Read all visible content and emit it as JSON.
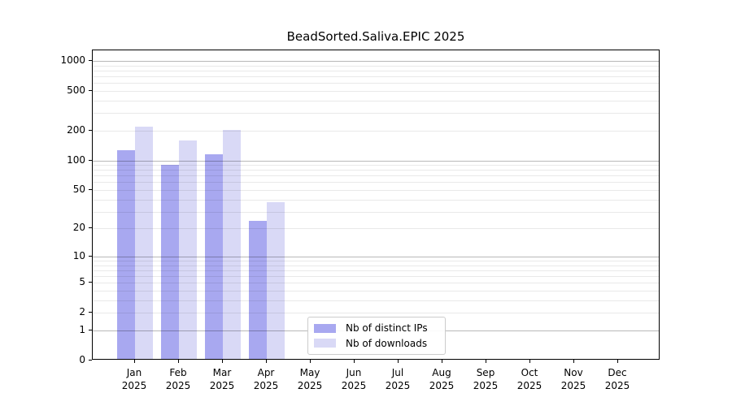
{
  "chart_data": {
    "type": "bar",
    "title": "BeadSorted.Saliva.EPIC 2025",
    "year_label": "2025",
    "categories": [
      "Jan",
      "Feb",
      "Mar",
      "Apr",
      "May",
      "Jun",
      "Jul",
      "Aug",
      "Sep",
      "Oct",
      "Nov",
      "Dec"
    ],
    "series": [
      {
        "name": "Nb of distinct IPs",
        "color": "#a8a8f0",
        "values": [
          123,
          87,
          111,
          23,
          0,
          0,
          0,
          0,
          0,
          0,
          0,
          0
        ]
      },
      {
        "name": "Nb of downloads",
        "color": "#d9d9f6",
        "values": [
          212,
          154,
          196,
          36,
          0,
          0,
          0,
          0,
          0,
          0,
          0,
          0
        ]
      }
    ],
    "xlabel": "",
    "ylabel": "",
    "y_scale": "log1p",
    "y_ticks": [
      0,
      1,
      2,
      5,
      10,
      20,
      50,
      100,
      200,
      500,
      1000
    ],
    "y_minor_gridlines": [
      2,
      3,
      4,
      5,
      6,
      7,
      8,
      9,
      20,
      30,
      40,
      50,
      60,
      70,
      80,
      90,
      200,
      300,
      400,
      500,
      600,
      700,
      800,
      900
    ],
    "y_major_gridlines": [
      1,
      10,
      100,
      1000
    ],
    "ylim": [
      0,
      1276
    ],
    "grid": true,
    "legend_position": "lower center",
    "colors": {
      "axis": "#000000",
      "grid_major": "#bcbcbc",
      "grid_minor": "#e9e9e9",
      "background": "#ffffff"
    }
  }
}
